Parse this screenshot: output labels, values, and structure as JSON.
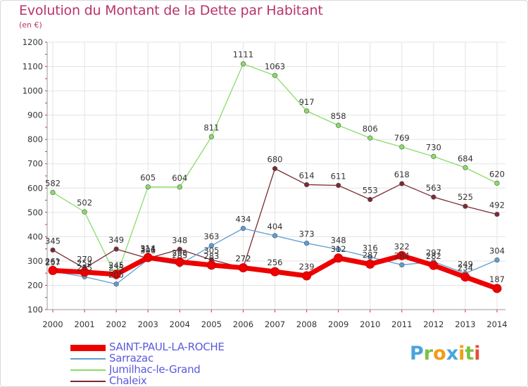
{
  "chart_data": {
    "type": "line",
    "title": "Evolution du Montant de la Dette par Habitant",
    "subtitle": "(en €)",
    "xlabel": "",
    "ylabel": "",
    "ylim": [
      100,
      1200
    ],
    "yticks": [
      100,
      200,
      300,
      400,
      500,
      600,
      700,
      800,
      900,
      1000,
      1100,
      1200
    ],
    "grid": true,
    "legend_position": "bottom-left",
    "x": [
      "2000",
      "2001",
      "2002",
      "2003",
      "2004",
      "2005",
      "2006",
      "2007",
      "2008",
      "2009",
      "2010",
      "2011",
      "2012",
      "2013",
      "2014"
    ],
    "series": [
      {
        "name": "Jumilhac-le-Grand",
        "color": "#88dd66",
        "values": [
          582,
          502,
          235,
          605,
          604,
          811,
          1111,
          1063,
          917,
          858,
          806,
          769,
          730,
          684,
          620
        ],
        "labels": [
          "582",
          "502",
          "235",
          "605",
          "604",
          "811",
          "1111",
          "1063",
          "917",
          "858",
          "806",
          "769",
          "730",
          "684",
          "620"
        ]
      },
      {
        "name": "Chaleix",
        "color": "#7a2a35",
        "values": [
          345,
          270,
          349,
          311,
          348,
          305,
          272,
          680,
          614,
          611,
          553,
          618,
          563,
          525,
          492
        ],
        "labels": [
          "345",
          "270",
          "349",
          "311",
          "348",
          "305",
          "272",
          "680",
          "614",
          "611",
          "553",
          "618",
          "563",
          "525",
          "492"
        ]
      },
      {
        "name": "Sarrazac",
        "color": "#5d9fd3",
        "values": [
          257,
          235,
          205,
          306,
          285,
          363,
          434,
          404,
          373,
          348,
          316,
          284,
          297,
          249,
          304
        ],
        "labels": [
          "257",
          "235",
          "205",
          "306",
          "285",
          "363",
          "434",
          "404",
          "373",
          "348",
          "316",
          "284",
          "297",
          "249",
          "304"
        ]
      },
      {
        "name": "SAINT-PAUL-LA-ROCHE",
        "color": "#ee0000",
        "values": [
          261,
          254,
          245,
          314,
          296,
          283,
          272,
          256,
          239,
          312,
          287,
          322,
          282,
          234,
          187
        ],
        "labels": [
          "261",
          "254",
          "245",
          "314",
          "296",
          "283",
          "272",
          "256",
          "239",
          "312",
          "287",
          "322",
          "282",
          "234",
          "187"
        ]
      }
    ],
    "legend_order": [
      "SAINT-PAUL-LA-ROCHE",
      "Sarrazac",
      "Jumilhac-le-Grand",
      "Chaleix"
    ]
  },
  "logo": {
    "letters": [
      "P",
      "r",
      "o",
      "x",
      "i",
      "t",
      "i"
    ],
    "colors": [
      "#4aa3df",
      "#7cc243",
      "#f39c12",
      "#4aa3df",
      "#f39c12",
      "#7cc243",
      "#e74c3c"
    ]
  }
}
